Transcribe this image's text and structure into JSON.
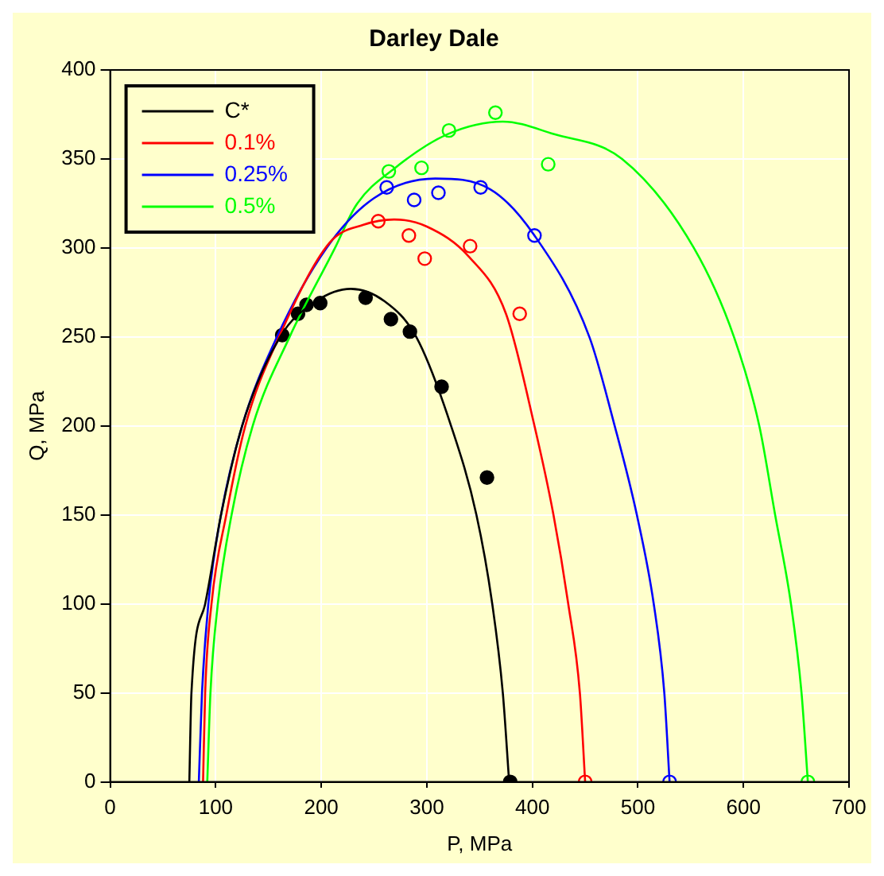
{
  "chart_data": {
    "type": "line",
    "title": "Darley Dale",
    "xlabel": "P, MPa",
    "ylabel": "Q, MPa",
    "xlim": [
      0,
      700
    ],
    "xticks": [
      0,
      100,
      200,
      300,
      400,
      500,
      600,
      700
    ],
    "ylim": [
      0,
      400
    ],
    "yticks": [
      0,
      50,
      100,
      150,
      200,
      250,
      300,
      350,
      400
    ],
    "grid": true,
    "legend": "top left",
    "marker": "none",
    "line_style": "solid",
    "series": [
      {
        "name": "C*",
        "color": "#000000",
        "x": [
          75,
          77,
          90,
          105,
          125,
          161,
          195,
          228,
          260,
          290,
          323,
          347,
          362,
          372,
          378
        ],
        "values": [
          0,
          50,
          100,
          150,
          200,
          250,
          270,
          277,
          270,
          250,
          200,
          150,
          100,
          50,
          0
        ]
      },
      {
        "name": "0.1%",
        "color": "#ff0000",
        "x": [
          88,
          90,
          96,
          110,
          128,
          160,
          208,
          240,
          269,
          300,
          340,
          375,
          402,
          420,
          434,
          445,
          450
        ],
        "values": [
          0,
          50,
          100,
          150,
          200,
          250,
          303,
          313,
          316,
          312,
          295,
          263,
          200,
          150,
          100,
          50,
          0
        ]
      },
      {
        "name": "0.25%",
        "color": "#0000ff",
        "x": [
          84,
          87,
          93,
          105,
          125,
          158,
          205,
          250,
          308,
          360,
          402,
          454,
          478,
          499,
          515,
          525,
          530
        ],
        "values": [
          0,
          50,
          100,
          150,
          200,
          250,
          300,
          328,
          339,
          333,
          307,
          250,
          200,
          150,
          100,
          50,
          0
        ]
      },
      {
        "name": "0.5%",
        "color": "#00ff00",
        "x": [
          92,
          95,
          102,
          115,
          135,
          170,
          213,
          233,
          270,
          320,
          372,
          420,
          485,
          553,
          591,
          615,
          630,
          645,
          655,
          661
        ],
        "values": [
          0,
          50,
          100,
          150,
          200,
          250,
          300,
          324,
          345,
          364,
          371,
          364,
          350,
          300,
          250,
          200,
          150,
          100,
          50,
          0
        ]
      },
      {
        "color": "#000000",
        "type": "scatter",
        "marker": "circle",
        "x": [
          163,
          178,
          186,
          199,
          242,
          266,
          284,
          314,
          357,
          379
        ],
        "values": [
          251,
          263,
          268,
          269,
          272,
          260,
          253,
          222,
          171,
          0
        ]
      },
      {
        "color": "#ff0000",
        "type": "scatter",
        "marker": "circle",
        "x": [
          254,
          283,
          298,
          341,
          388,
          450
        ],
        "values": [
          315,
          307,
          294,
          301,
          263,
          0
        ]
      },
      {
        "color": "#0000ff",
        "type": "scatter",
        "marker": "circle",
        "x": [
          262,
          288,
          311,
          351,
          402,
          530
        ],
        "values": [
          334,
          327,
          331,
          334,
          307,
          0
        ]
      },
      {
        "color": "#00ff00",
        "type": "scatter",
        "marker": "circle",
        "x": [
          264,
          295,
          321,
          365,
          415,
          661
        ],
        "values": [
          343,
          345,
          366,
          376,
          347,
          0
        ]
      }
    ]
  }
}
